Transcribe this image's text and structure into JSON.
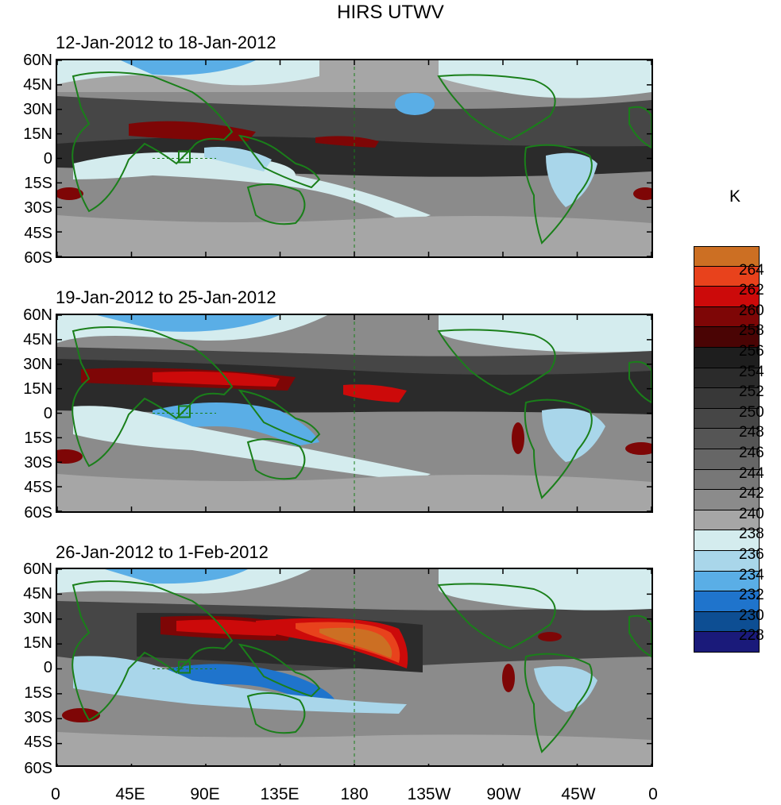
{
  "title": "HIRS UTWV",
  "panels": [
    {
      "title": "12-Jan-2012 to 18-Jan-2012"
    },
    {
      "title": "19-Jan-2012 to 25-Jan-2012"
    },
    {
      "title": "26-Jan-2012 to 1-Feb-2012"
    }
  ],
  "y_ticks": [
    "60N",
    "45N",
    "30N",
    "15N",
    "0",
    "15S",
    "30S",
    "45S",
    "60S"
  ],
  "x_ticks": [
    "0",
    "45E",
    "90E",
    "135E",
    "180",
    "135W",
    "90W",
    "45W",
    "0"
  ],
  "colorbar": {
    "units": "K",
    "labels": [
      "264",
      "262",
      "260",
      "258",
      "256",
      "254",
      "252",
      "250",
      "248",
      "246",
      "244",
      "242",
      "240",
      "238",
      "236",
      "234",
      "232",
      "230",
      "228"
    ],
    "colors": [
      "#cc6f23",
      "#e8421c",
      "#cc0a0a",
      "#7e0606",
      "#4a0404",
      "#1e1e1e",
      "#2b2b2b",
      "#383838",
      "#464646",
      "#555555",
      "#666666",
      "#777777",
      "#8b8b8b",
      "#a6a6a6",
      "#d4ecee",
      "#a9d6ea",
      "#5aaee6",
      "#1f74cc",
      "#0d4e93",
      "#1a1a7a"
    ]
  },
  "colors": {
    "coast": "#1a7f1a",
    "ocean_bg": "#8a8a8a"
  }
}
